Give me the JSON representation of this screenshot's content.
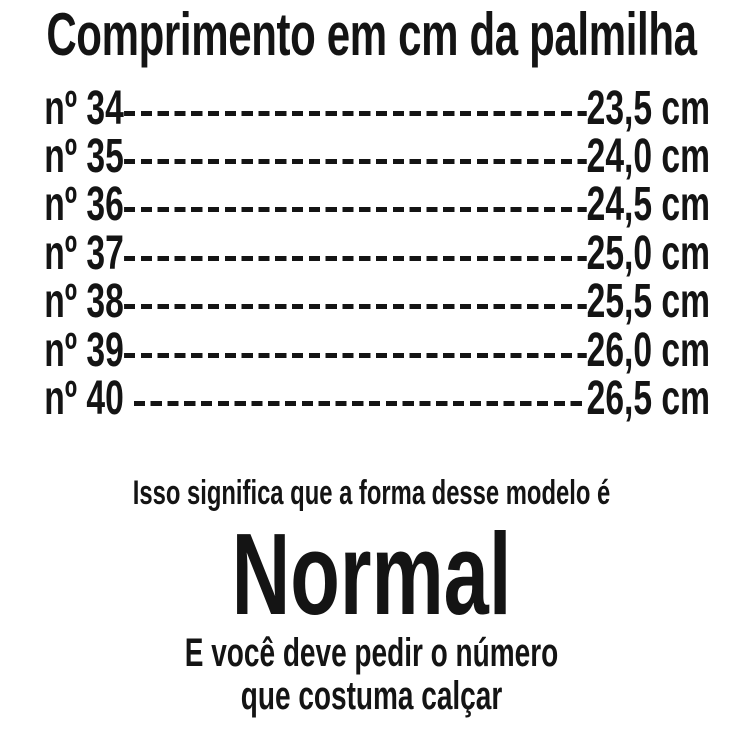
{
  "title": "Comprimento em cm da palmilha",
  "table": {
    "rows": [
      {
        "size": "nº 34",
        "length": "23,5 cm"
      },
      {
        "size": "nº 35",
        "length": "24,0 cm"
      },
      {
        "size": "nº 36",
        "length": "24,5 cm"
      },
      {
        "size": "nº 37",
        "length": "25,0 cm"
      },
      {
        "size": "nº 38",
        "length": "25,5 cm"
      },
      {
        "size": "nº 39",
        "length": "26,0 cm"
      },
      {
        "size": "nº 40",
        "length": "26,5 cm"
      }
    ]
  },
  "footer": {
    "statement": "Isso significa que a forma desse modelo é",
    "shape": "Normal",
    "instruction_line1": "E você deve pedir o número",
    "instruction_line2": "que costuma calçar"
  },
  "colors": {
    "text": "#141414",
    "background": "#ffffff"
  }
}
